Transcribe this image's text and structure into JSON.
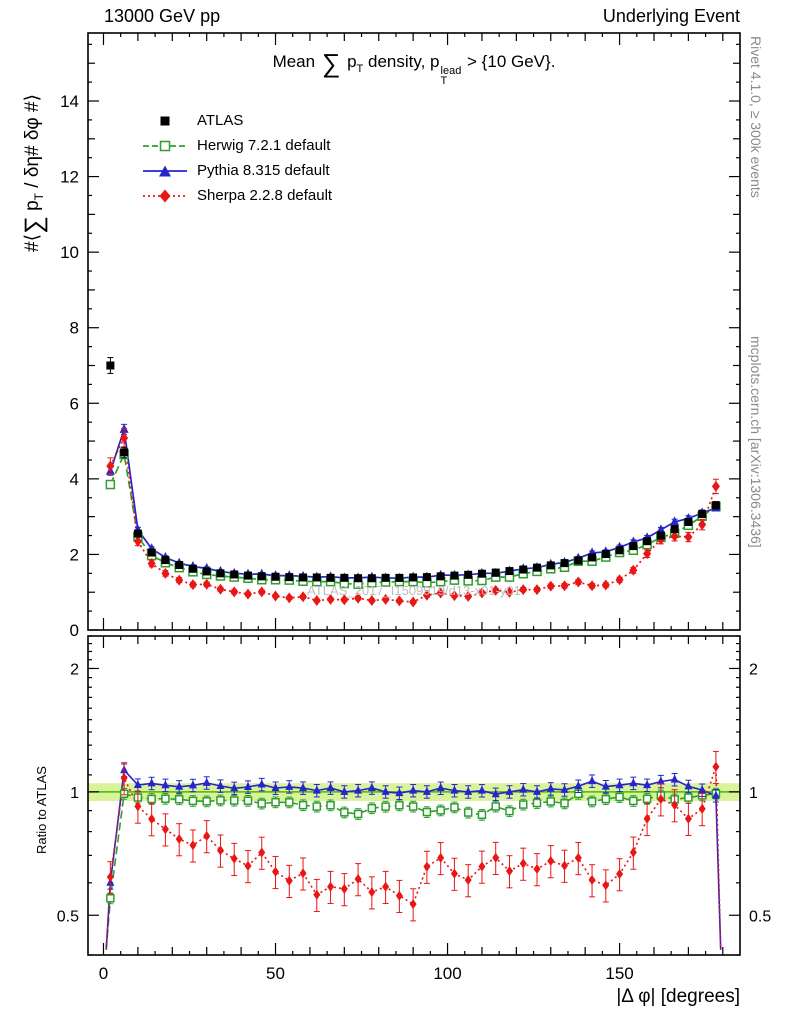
{
  "header": {
    "left": "13000 GeV pp",
    "right": "Underlying Event"
  },
  "title": {
    "pre": "Mean ",
    "sum": "∑",
    "p": " p",
    "psub": "T",
    "mid": " density, p",
    "sup": "lead",
    "sub": "T",
    "post": " > {10 GeV}."
  },
  "ylabel": {
    "a": "#⟨",
    "sum": "∑",
    "b": " p",
    "sub": "T",
    "c": " / δη# δφ #⟩"
  },
  "ratio_label": "Ratio to ATLAS",
  "xlabel": "|Δ φ| [degrees]",
  "side_notes": {
    "top_right": "Rivet 4.1.0, ≥ 300k events",
    "bottom_right": "mcplots.cern.ch [arXiv:1306.3436]"
  },
  "watermark": "ATLAS_2017_I1509919/d13-x01-y01",
  "legend": {
    "items": [
      {
        "label": "ATLAS"
      },
      {
        "label": "Herwig 7.2.1 default"
      },
      {
        "label": "Pythia 8.315 default"
      },
      {
        "label": "Sherpa 2.2.8 default"
      }
    ]
  },
  "chart_data": {
    "type": "line",
    "title": "Mean sum pT density vs |Δφ|, pT(lead) > 10 GeV",
    "xlabel": "|Δ φ| [degrees]",
    "ylabel": "⟨∑ pT / δη δφ⟩",
    "xlim": [
      -4.5,
      185
    ],
    "ylim": [
      0,
      15.8
    ],
    "ratio_ylim": [
      0.4,
      2.4
    ],
    "ratio_scale": "log",
    "xticks": [
      0,
      50,
      100,
      150
    ],
    "yticks": [
      0,
      2,
      4,
      6,
      8,
      10,
      12,
      14
    ],
    "ratio_ticks": [
      0.5,
      1,
      2
    ],
    "ratio_band": {
      "center": 1.0,
      "halfwidth": 0.05,
      "fill": "#d9f29b",
      "line": "#49b800"
    },
    "x": [
      2,
      6,
      10,
      14,
      18,
      22,
      26,
      30,
      34,
      38,
      42,
      46,
      50,
      54,
      58,
      62,
      66,
      70,
      74,
      78,
      82,
      86,
      90,
      94,
      98,
      102,
      106,
      110,
      114,
      118,
      122,
      126,
      130,
      134,
      138,
      142,
      146,
      150,
      154,
      158,
      162,
      166,
      170,
      174,
      178
    ],
    "series": [
      {
        "name": "ATLAS",
        "color": "#000000",
        "marker": "square-filled",
        "line": "none",
        "err_frac": 0.03,
        "values": [
          7.0,
          4.7,
          2.55,
          2.05,
          1.85,
          1.72,
          1.62,
          1.55,
          1.5,
          1.47,
          1.44,
          1.42,
          1.41,
          1.4,
          1.39,
          1.39,
          1.38,
          1.38,
          1.37,
          1.37,
          1.38,
          1.38,
          1.39,
          1.4,
          1.42,
          1.44,
          1.46,
          1.49,
          1.52,
          1.56,
          1.6,
          1.65,
          1.71,
          1.77,
          1.84,
          1.92,
          2.01,
          2.11,
          2.22,
          2.35,
          2.5,
          2.67,
          2.86,
          3.07,
          3.3
        ]
      },
      {
        "name": "Herwig 7.2.1 default",
        "color": "#2f9e2f",
        "marker": "square-open",
        "line": "dashed",
        "err_frac": 0.025,
        "ratio_err_frac": 0.03,
        "values": [
          3.85,
          4.65,
          2.47,
          1.97,
          1.78,
          1.65,
          1.54,
          1.47,
          1.43,
          1.4,
          1.37,
          1.33,
          1.33,
          1.32,
          1.29,
          1.28,
          1.28,
          1.23,
          1.21,
          1.25,
          1.27,
          1.28,
          1.28,
          1.25,
          1.28,
          1.32,
          1.3,
          1.31,
          1.4,
          1.4,
          1.49,
          1.55,
          1.62,
          1.66,
          1.82,
          1.82,
          1.93,
          2.05,
          2.11,
          2.26,
          2.45,
          2.56,
          2.77,
          3.01,
          3.27
        ]
      },
      {
        "name": "Pythia 8.315 default",
        "color": "#2525cc",
        "marker": "triangle-filled",
        "line": "solid",
        "err_frac": 0.025,
        "ratio_err_frac": 0.035,
        "values": [
          4.2,
          5.31,
          2.65,
          2.15,
          1.92,
          1.77,
          1.68,
          1.63,
          1.55,
          1.5,
          1.48,
          1.48,
          1.44,
          1.44,
          1.42,
          1.4,
          1.41,
          1.38,
          1.38,
          1.4,
          1.38,
          1.37,
          1.4,
          1.4,
          1.45,
          1.45,
          1.46,
          1.5,
          1.5,
          1.56,
          1.62,
          1.65,
          1.74,
          1.79,
          1.9,
          2.04,
          2.07,
          2.19,
          2.33,
          2.44,
          2.65,
          2.86,
          2.95,
          3.1,
          3.23
        ]
      },
      {
        "name": "Sherpa 2.2.8 default",
        "color": "#ea1515",
        "marker": "diamond-filled",
        "line": "dotted",
        "err_frac": 0.05,
        "ratio_err_frac": 0.09,
        "values": [
          4.34,
          5.08,
          2.35,
          1.76,
          1.5,
          1.32,
          1.2,
          1.21,
          1.08,
          1.01,
          0.95,
          1.01,
          0.9,
          0.85,
          0.88,
          0.78,
          0.81,
          0.8,
          0.84,
          0.78,
          0.81,
          0.77,
          0.74,
          0.92,
          0.98,
          0.91,
          0.89,
          0.98,
          1.05,
          1.0,
          1.07,
          1.07,
          1.16,
          1.17,
          1.27,
          1.17,
          1.19,
          1.33,
          1.58,
          2.02,
          2.4,
          2.48,
          2.46,
          2.79,
          3.8
        ]
      }
    ]
  }
}
